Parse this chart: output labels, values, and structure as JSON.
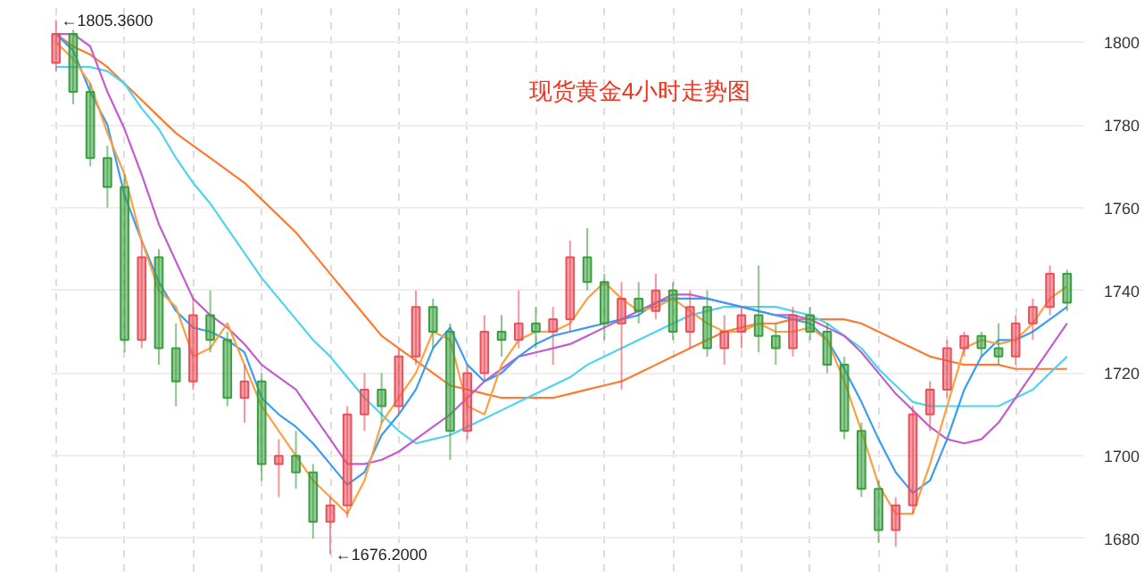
{
  "chart_data": {
    "type": "candlestick",
    "title": "现货黄金4小时走势图",
    "categories": [
      null,
      null,
      null,
      null,
      null,
      null,
      null,
      null,
      null,
      null,
      null,
      null,
      null,
      null,
      null,
      null,
      null,
      null,
      null,
      null,
      null,
      null,
      null,
      null,
      null,
      null,
      null,
      null,
      null,
      null,
      null,
      null,
      null,
      null,
      null,
      null,
      null,
      null,
      null,
      null,
      null,
      null,
      null,
      null,
      null,
      null,
      null,
      null,
      null,
      null,
      null,
      null,
      null,
      null,
      null,
      null,
      null,
      null,
      null,
      null
    ],
    "series": [
      {
        "type": "line",
        "color": "#ff7a30",
        "values": [
          1802,
          1799,
          1797,
          1794,
          1790,
          1786,
          1782,
          1778,
          1775,
          1772,
          1769,
          1766,
          1762,
          1758,
          1754,
          1749,
          1744,
          1739,
          1734,
          1729,
          1726,
          1723,
          1720,
          1717,
          1716,
          1715,
          1714,
          1714,
          1714,
          1714,
          1715,
          1716,
          1717,
          1718,
          1720,
          1722,
          1724,
          1726,
          1728,
          1730,
          1731,
          1732,
          1732,
          1733,
          1733,
          1733,
          1733,
          1732,
          1730,
          1728,
          1726,
          1724,
          1723,
          1722,
          1722,
          1722,
          1721,
          1721,
          1721,
          1721
        ]
      },
      {
        "type": "line",
        "color": "#4dd4ee",
        "values": [
          1794,
          1794,
          1794,
          1793,
          1790,
          1784,
          1779,
          1772,
          1766,
          1761,
          1755,
          1749,
          1743,
          1738,
          1733,
          1728,
          1724,
          1719,
          1714,
          1710,
          1706,
          1703,
          1704,
          1705,
          1707,
          1709,
          1711,
          1713,
          1715,
          1717,
          1719,
          1722,
          1724,
          1726,
          1728,
          1730,
          1732,
          1734,
          1735,
          1736,
          1736,
          1736,
          1736,
          1735,
          1734,
          1732,
          1729,
          1726,
          1721,
          1717,
          1713,
          1712,
          1712,
          1712,
          1712,
          1712,
          1714,
          1716,
          1720,
          1724
        ]
      },
      {
        "type": "line",
        "color": "#c45ccf",
        "values": [
          1802,
          1802,
          1799,
          1788,
          1779,
          1768,
          1756,
          1747,
          1738,
          1734,
          1731,
          1727,
          1722,
          1719,
          1716,
          1710,
          1704,
          1698,
          1698,
          1699,
          1701,
          1704,
          1707,
          1710,
          1714,
          1718,
          1721,
          1724,
          1725,
          1726,
          1727,
          1729,
          1731,
          1733,
          1735,
          1737,
          1739,
          1739,
          1738,
          1737,
          1736,
          1735,
          1734,
          1734,
          1733,
          1731,
          1729,
          1725,
          1720,
          1715,
          1711,
          1707,
          1704,
          1703,
          1704,
          1708,
          1714,
          1720,
          1726,
          1732
        ]
      },
      {
        "type": "line",
        "color": "#3a9cf5",
        "values": [
          1802,
          1798,
          1788,
          1780,
          1763,
          1752,
          1742,
          1735,
          1731,
          1730,
          1728,
          1725,
          1714,
          1710,
          1707,
          1703,
          1698,
          1693,
          1696,
          1705,
          1710,
          1716,
          1726,
          1731,
          1722,
          1718,
          1720,
          1724,
          1727,
          1729,
          1730,
          1731,
          1732,
          1733,
          1734,
          1737,
          1738,
          1738,
          1738,
          1737,
          1736,
          1735,
          1734,
          1733,
          1732,
          1728,
          1721,
          1713,
          1704,
          1696,
          1691,
          1694,
          1704,
          1716,
          1724,
          1728,
          1728,
          1730,
          1733,
          1736
        ]
      },
      {
        "type": "line",
        "color": "#ffa040",
        "values": [
          1800,
          1796,
          1790,
          1778,
          1768,
          1752,
          1740,
          1736,
          1724,
          1726,
          1732,
          1722,
          1712,
          1706,
          1700,
          1694,
          1690,
          1686,
          1694,
          1708,
          1714,
          1720,
          1730,
          1728,
          1712,
          1710,
          1722,
          1728,
          1730,
          1730,
          1732,
          1738,
          1742,
          1738,
          1735,
          1736,
          1738,
          1735,
          1732,
          1730,
          1730,
          1732,
          1730,
          1730,
          1731,
          1728,
          1718,
          1706,
          1693,
          1686,
          1686,
          1698,
          1712,
          1726,
          1728,
          1727,
          1728,
          1732,
          1738,
          1741
        ]
      },
      {
        "ohlc": [
          [
            1795,
            1805.36,
            1793,
            1802
          ],
          [
            1802,
            1803,
            1785,
            1788
          ],
          [
            1788,
            1790,
            1770,
            1772
          ],
          [
            1772,
            1775,
            1760,
            1765
          ],
          [
            1765,
            1768,
            1725,
            1728
          ],
          [
            1728,
            1752,
            1726,
            1748
          ],
          [
            1748,
            1750,
            1722,
            1726
          ],
          [
            1726,
            1732,
            1712,
            1718
          ],
          [
            1718,
            1738,
            1716,
            1734
          ],
          [
            1734,
            1740,
            1725,
            1728
          ],
          [
            1728,
            1730,
            1712,
            1714
          ],
          [
            1714,
            1722,
            1708,
            1718
          ],
          [
            1718,
            1720,
            1694,
            1698
          ],
          [
            1698,
            1704,
            1690,
            1700
          ],
          [
            1700,
            1706,
            1692,
            1696
          ],
          [
            1696,
            1698,
            1680,
            1684
          ],
          [
            1684,
            1690,
            1676.2,
            1688
          ],
          [
            1688,
            1712,
            1685,
            1710
          ],
          [
            1710,
            1720,
            1706,
            1716
          ],
          [
            1716,
            1720,
            1708,
            1712
          ],
          [
            1712,
            1726,
            1710,
            1724
          ],
          [
            1724,
            1740,
            1722,
            1736
          ],
          [
            1736,
            1738,
            1726,
            1730
          ],
          [
            1730,
            1732,
            1699,
            1706
          ],
          [
            1706,
            1722,
            1704,
            1720
          ],
          [
            1720,
            1734,
            1718,
            1730
          ],
          [
            1730,
            1734,
            1724,
            1728
          ],
          [
            1728,
            1740,
            1726,
            1732
          ],
          [
            1732,
            1736,
            1726,
            1730
          ],
          [
            1730,
            1736,
            1722,
            1733
          ],
          [
            1733,
            1752,
            1730,
            1748
          ],
          [
            1748,
            1755,
            1740,
            1742
          ],
          [
            1742,
            1744,
            1728,
            1732
          ],
          [
            1732,
            1742,
            1716,
            1738
          ],
          [
            1738,
            1742,
            1732,
            1735
          ],
          [
            1735,
            1744,
            1733,
            1740
          ],
          [
            1740,
            1742,
            1728,
            1730
          ],
          [
            1730,
            1740,
            1726,
            1736
          ],
          [
            1736,
            1740,
            1724,
            1726
          ],
          [
            1726,
            1734,
            1722,
            1730
          ],
          [
            1730,
            1736,
            1726,
            1734
          ],
          [
            1734,
            1746,
            1725,
            1729
          ],
          [
            1729,
            1732,
            1722,
            1726
          ],
          [
            1726,
            1736,
            1724,
            1734
          ],
          [
            1734,
            1736,
            1728,
            1730
          ],
          [
            1730,
            1732,
            1720,
            1722
          ],
          [
            1722,
            1724,
            1704,
            1706
          ],
          [
            1706,
            1708,
            1690,
            1692
          ],
          [
            1692,
            1694,
            1679,
            1682
          ],
          [
            1682,
            1690,
            1678,
            1688
          ],
          [
            1688,
            1712,
            1686,
            1710
          ],
          [
            1710,
            1718,
            1706,
            1716
          ],
          [
            1716,
            1728,
            1714,
            1726
          ],
          [
            1726,
            1730,
            1724,
            1729
          ],
          [
            1729,
            1730,
            1724,
            1726
          ],
          [
            1726,
            1732,
            1722,
            1724
          ],
          [
            1724,
            1734,
            1722,
            1732
          ],
          [
            1732,
            1738,
            1728,
            1736
          ],
          [
            1736,
            1746,
            1734,
            1744
          ],
          [
            1744,
            1745,
            1735,
            1737
          ]
        ],
        "colors": [
          "#e8505b",
          "#3a9e3f",
          "#3a9e3f",
          "#3a9e3f",
          "#3a9e3f",
          "#e8505b",
          "#3a9e3f",
          "#3a9e3f",
          "#e8505b",
          "#3a9e3f",
          "#3a9e3f",
          "#e8505b",
          "#3a9e3f",
          "#e8505b",
          "#3a9e3f",
          "#3a9e3f",
          "#e8505b",
          "#e8505b",
          "#e8505b",
          "#3a9e3f",
          "#e8505b",
          "#e8505b",
          "#3a9e3f",
          "#3a9e3f",
          "#e8505b",
          "#e8505b",
          "#3a9e3f",
          "#e8505b",
          "#3a9e3f",
          "#e8505b",
          "#e8505b",
          "#3a9e3f",
          "#3a9e3f",
          "#e8505b",
          "#3a9e3f",
          "#e8505b",
          "#3a9e3f",
          "#e8505b",
          "#3a9e3f",
          "#e8505b",
          "#e8505b",
          "#3a9e3f",
          "#3a9e3f",
          "#e8505b",
          "#3a9e3f",
          "#3a9e3f",
          "#3a9e3f",
          "#3a9e3f",
          "#3a9e3f",
          "#e8505b",
          "#e8505b",
          "#e8505b",
          "#e8505b",
          "#e8505b",
          "#3a9e3f",
          "#3a9e3f",
          "#e8505b",
          "#e8505b",
          "#e8505b",
          "#3a9e3f"
        ]
      }
    ],
    "ylim": [
      1672,
      1810
    ],
    "yticks": [
      1680,
      1700,
      1720,
      1740,
      1760,
      1780,
      1800
    ],
    "grid": true,
    "tick_labels": "y",
    "annotations": [
      "←1805.3600",
      "←1676.2000"
    ]
  }
}
